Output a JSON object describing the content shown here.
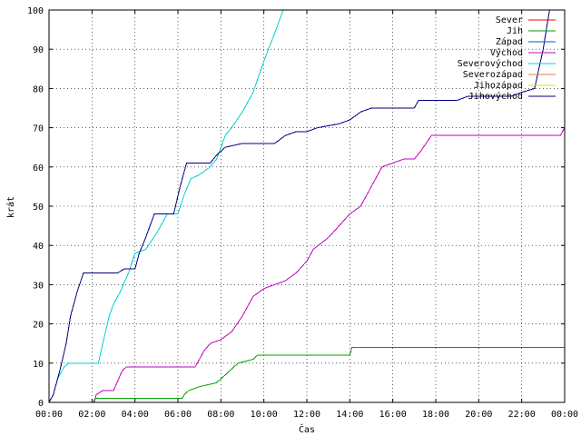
{
  "chart_data": {
    "type": "line",
    "title": "",
    "xlabel": "Čas",
    "ylabel": "krát",
    "xlim": [
      0,
      24
    ],
    "ylim": [
      0,
      100
    ],
    "grid": true,
    "legend_placement": "top-right",
    "x_ticks": [
      0,
      2,
      4,
      6,
      8,
      10,
      12,
      14,
      16,
      18,
      20,
      22,
      24
    ],
    "x_tick_labels": [
      "00:00",
      "02:00",
      "04:00",
      "06:00",
      "08:00",
      "10:00",
      "12:00",
      "14:00",
      "16:00",
      "18:00",
      "20:00",
      "22:00",
      "00:00"
    ],
    "y_ticks": [
      0,
      10,
      20,
      30,
      40,
      50,
      60,
      70,
      80,
      90,
      100
    ],
    "y_tick_labels": [
      "0",
      "10",
      "20",
      "30",
      "40",
      "50",
      "60",
      "70",
      "80",
      "90",
      "100"
    ],
    "series": [
      {
        "name": "Sever",
        "color": "#ff0000",
        "points": []
      },
      {
        "name": "Jih",
        "color": "#00a000",
        "points": [
          [
            0,
            0
          ],
          [
            2.05,
            0
          ],
          [
            2.15,
            1
          ],
          [
            6.2,
            1
          ],
          [
            6.3,
            2
          ],
          [
            6.5,
            3
          ],
          [
            7.0,
            4
          ],
          [
            7.8,
            5
          ],
          [
            8.0,
            6
          ],
          [
            8.2,
            7
          ],
          [
            8.4,
            8
          ],
          [
            8.6,
            9
          ],
          [
            8.8,
            10
          ],
          [
            9.5,
            11
          ],
          [
            9.7,
            12
          ],
          [
            14.0,
            12
          ],
          [
            14.1,
            14
          ],
          [
            24,
            14
          ]
        ]
      },
      {
        "name": "Západ",
        "color": "#0060ad",
        "points": []
      },
      {
        "name": "Východ",
        "color": "#c000c0",
        "points": [
          [
            0,
            0
          ],
          [
            2.1,
            0
          ],
          [
            2.2,
            2
          ],
          [
            2.5,
            3
          ],
          [
            3.0,
            3
          ],
          [
            3.4,
            8
          ],
          [
            3.6,
            9
          ],
          [
            6.8,
            9
          ],
          [
            7.0,
            11
          ],
          [
            7.2,
            13
          ],
          [
            7.5,
            15
          ],
          [
            8.0,
            16
          ],
          [
            8.5,
            18
          ],
          [
            9.0,
            22
          ],
          [
            9.5,
            27
          ],
          [
            10.0,
            29
          ],
          [
            10.5,
            30
          ],
          [
            11.0,
            31
          ],
          [
            11.5,
            33
          ],
          [
            12.0,
            36
          ],
          [
            12.3,
            39
          ],
          [
            13.0,
            42
          ],
          [
            13.5,
            45
          ],
          [
            14.0,
            48
          ],
          [
            14.5,
            50
          ],
          [
            15.0,
            55
          ],
          [
            15.5,
            60
          ],
          [
            16.0,
            61
          ],
          [
            16.5,
            62
          ],
          [
            17.0,
            62
          ],
          [
            17.3,
            64
          ],
          [
            17.8,
            68
          ],
          [
            23.8,
            68
          ],
          [
            24,
            70
          ]
        ]
      },
      {
        "name": "Severovýchod",
        "color": "#00d0d0",
        "points": [
          [
            0,
            0
          ],
          [
            0.2,
            2
          ],
          [
            0.4,
            6
          ],
          [
            0.7,
            9
          ],
          [
            0.9,
            10
          ],
          [
            2.3,
            10
          ],
          [
            2.5,
            15
          ],
          [
            2.8,
            22
          ],
          [
            3.0,
            25
          ],
          [
            3.3,
            28
          ],
          [
            3.7,
            33
          ],
          [
            4.0,
            38
          ],
          [
            4.5,
            39
          ],
          [
            5.0,
            43
          ],
          [
            5.5,
            48
          ],
          [
            6.0,
            48
          ],
          [
            6.3,
            53
          ],
          [
            6.6,
            57
          ],
          [
            7.0,
            58
          ],
          [
            7.5,
            60
          ],
          [
            7.8,
            62
          ],
          [
            8.2,
            68
          ],
          [
            8.5,
            70
          ],
          [
            9.0,
            74
          ],
          [
            9.5,
            79
          ],
          [
            10.0,
            87
          ],
          [
            10.5,
            94
          ],
          [
            10.9,
            100
          ]
        ]
      },
      {
        "name": "Severozápad",
        "color": "#e08040",
        "points": []
      },
      {
        "name": "Jihozápad",
        "color": "#e0e000",
        "points": []
      },
      {
        "name": "Jihovýchod",
        "color": "#000080",
        "points": [
          [
            0,
            0
          ],
          [
            0.2,
            2
          ],
          [
            0.5,
            8
          ],
          [
            0.8,
            15
          ],
          [
            1.0,
            22
          ],
          [
            1.3,
            28
          ],
          [
            1.6,
            33
          ],
          [
            3.2,
            33
          ],
          [
            3.5,
            34
          ],
          [
            4.0,
            34
          ],
          [
            4.2,
            38
          ],
          [
            4.5,
            42
          ],
          [
            4.9,
            48
          ],
          [
            5.8,
            48
          ],
          [
            6.1,
            55
          ],
          [
            6.4,
            61
          ],
          [
            7.5,
            61
          ],
          [
            7.8,
            63
          ],
          [
            8.2,
            65
          ],
          [
            9.0,
            66
          ],
          [
            10.5,
            66
          ],
          [
            11.0,
            68
          ],
          [
            11.5,
            69
          ],
          [
            12.0,
            69
          ],
          [
            12.5,
            70
          ],
          [
            13.5,
            71
          ],
          [
            14.0,
            72
          ],
          [
            14.5,
            74
          ],
          [
            15.0,
            75
          ],
          [
            17.0,
            75
          ],
          [
            17.2,
            77
          ],
          [
            19.0,
            77
          ],
          [
            19.5,
            78
          ],
          [
            21.5,
            78
          ],
          [
            22.0,
            79
          ],
          [
            22.6,
            80
          ],
          [
            23.0,
            90
          ],
          [
            23.3,
            100
          ]
        ]
      }
    ]
  }
}
